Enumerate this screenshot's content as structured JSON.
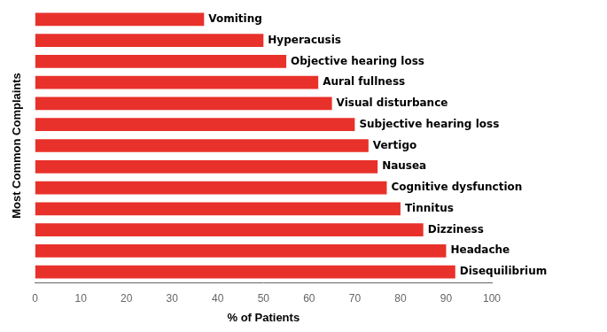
{
  "chart_data": {
    "type": "bar",
    "orientation": "horizontal",
    "xlabel": "% of Patients",
    "ylabel": "Most Common Complaints",
    "categories": [
      "Disequilibrium",
      "Headache",
      "Dizziness",
      "Tinnitus",
      "Cognitive dysfunction",
      "Nausea",
      "Vertigo",
      "Subjective hearing loss",
      "Visual disturbance",
      "Aural fullness",
      "Objective hearing loss",
      "Hyperacusis",
      "Vomiting"
    ],
    "values": [
      92,
      90,
      85,
      80,
      77,
      75,
      73,
      70,
      65,
      62,
      55,
      50,
      37
    ],
    "color": "#e8312a",
    "xlim": [
      0,
      100
    ],
    "xticks": [
      0,
      10,
      20,
      30,
      40,
      50,
      60,
      70,
      80,
      90,
      100
    ],
    "grid": false,
    "tick_labels": "x"
  }
}
